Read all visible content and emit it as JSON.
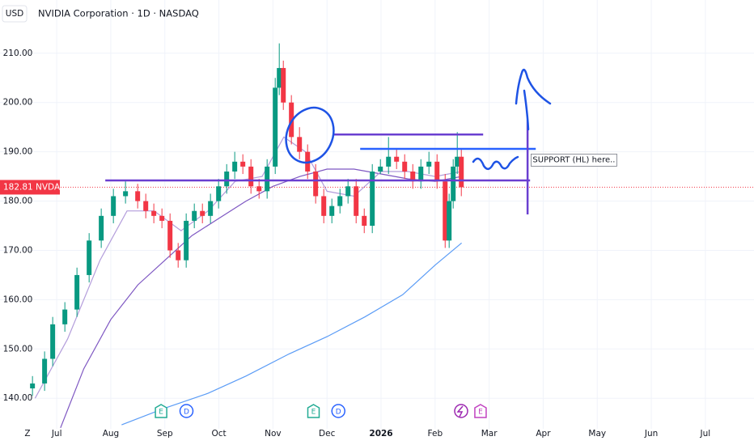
{
  "chart_data": {
    "type": "candlestick",
    "currency": "USD",
    "title": "NVIDIA Corporation · 1D · NASDAQ",
    "corner_label": "Z",
    "xlim": [
      5.95,
      19.9
    ],
    "ylim": [
      133.8,
      220.8
    ],
    "xticks": [
      {
        "value": 7,
        "label": "Jul"
      },
      {
        "value": 8,
        "label": "Aug"
      },
      {
        "value": 9,
        "label": "Sep"
      },
      {
        "value": 10,
        "label": "Oct"
      },
      {
        "value": 11,
        "label": "Nov"
      },
      {
        "value": 12,
        "label": "Dec"
      },
      {
        "value": 13,
        "label": "2026"
      },
      {
        "value": 14,
        "label": "Feb"
      },
      {
        "value": 15,
        "label": "Mar"
      },
      {
        "value": 16,
        "label": "Apr"
      },
      {
        "value": 17,
        "label": "May"
      },
      {
        "value": 18,
        "label": "Jun"
      },
      {
        "value": 19,
        "label": "Jul"
      }
    ],
    "yticks": [
      {
        "value": 140,
        "label": "140.00"
      },
      {
        "value": 150,
        "label": "150.00"
      },
      {
        "value": 160,
        "label": "160.00"
      },
      {
        "value": 170,
        "label": "170.00"
      },
      {
        "value": 180,
        "label": "180.00"
      },
      {
        "value": 190,
        "label": "190.00"
      },
      {
        "value": 200,
        "label": "200.00"
      },
      {
        "value": 210,
        "label": "210.00"
      }
    ],
    "grid": true,
    "up_color": "#089981",
    "down_color": "#f23645",
    "candles": {
      "x": [
        6.551,
        6.775,
        6.925,
        7.15,
        7.374,
        7.599,
        7.823,
        8.048,
        8.272,
        8.497,
        8.647,
        8.796,
        8.946,
        9.096,
        9.246,
        9.395,
        9.545,
        9.695,
        9.844,
        9.994,
        10.144,
        10.293,
        10.443,
        10.593,
        10.743,
        10.892,
        11.042,
        11.117,
        11.192,
        11.341,
        11.491,
        11.641,
        11.79,
        11.94,
        12.09,
        12.24,
        12.389,
        12.539,
        12.689,
        12.838,
        12.988,
        13.138,
        13.287,
        13.437,
        13.587,
        13.737,
        13.886,
        14.036,
        14.186,
        14.26,
        14.335,
        14.41,
        14.485
      ],
      "open": [
        142,
        143,
        148,
        155,
        158,
        165,
        172,
        177,
        181,
        182,
        180,
        178,
        177,
        176,
        170,
        168,
        176,
        178,
        177,
        180,
        183,
        186,
        188,
        187,
        183,
        182,
        187,
        203,
        207,
        200,
        193,
        190,
        186,
        181,
        177,
        179,
        181,
        183,
        177,
        175,
        186,
        187,
        189,
        188,
        186,
        184,
        187,
        188,
        184,
        172,
        180,
        187,
        189
      ],
      "high": [
        144.5,
        149.5,
        156.5,
        159.5,
        166.5,
        173.5,
        178.5,
        182.5,
        184,
        183.5,
        181.5,
        179.5,
        178.5,
        177.5,
        171.5,
        177.5,
        179.5,
        179.5,
        181.5,
        184.5,
        187.5,
        190,
        189.5,
        188.5,
        184.5,
        188.5,
        205,
        212,
        208.5,
        201.5,
        195,
        191.5,
        187.5,
        182.5,
        180.5,
        182.5,
        184.5,
        184.5,
        178.5,
        187.5,
        188.5,
        193,
        190.5,
        189.5,
        187.5,
        188.5,
        190,
        189.5,
        185.5,
        181.5,
        188.5,
        194,
        190.5
      ],
      "low": [
        140.5,
        141.5,
        146.5,
        153.5,
        156.5,
        163.5,
        170.5,
        175.5,
        179.5,
        178.5,
        176.5,
        175.5,
        174.5,
        168.5,
        166.5,
        166.5,
        174.5,
        175.5,
        175.5,
        178.5,
        181.5,
        184.5,
        185.5,
        181.5,
        180.5,
        180.5,
        185.5,
        201.5,
        198.5,
        191.5,
        188.5,
        184.5,
        179.5,
        175.5,
        175.5,
        177.5,
        179.5,
        175.5,
        173.5,
        173.5,
        185.5,
        185.5,
        186.5,
        184.5,
        182.5,
        182.5,
        185.5,
        182.5,
        170.5,
        170.5,
        178.5,
        185.5,
        181
      ],
      "close": [
        143,
        148,
        155,
        158,
        165,
        172,
        177,
        181,
        182,
        180,
        178,
        177,
        176,
        170,
        168,
        176,
        178,
        177,
        180,
        183,
        186,
        188,
        187,
        183,
        182,
        187,
        203,
        207,
        200,
        193,
        190,
        186,
        181,
        177,
        179,
        181,
        183,
        177,
        175,
        186,
        187,
        189,
        188,
        186,
        184,
        187,
        188,
        184,
        172,
        180,
        187,
        189,
        182.81
      ]
    },
    "series": [
      {
        "color": "#5b9cf6",
        "x": [
          8.2,
          9.0,
          9.8,
          10.5,
          11.3,
          12.0,
          12.7,
          13.4,
          14.0,
          14.49
        ],
        "values": [
          134.6,
          138,
          141,
          144.5,
          149,
          152.5,
          156.5,
          161,
          167,
          171.5
        ]
      },
      {
        "color": "#7e57c2",
        "x": [
          7.07,
          7.5,
          8.0,
          8.5,
          9.0,
          9.5,
          10.0,
          10.5,
          11.0,
          11.5,
          12.0,
          12.5,
          13.0,
          13.5,
          14.0,
          14.49
        ],
        "values": [
          134,
          146,
          156,
          163,
          168,
          173,
          176.5,
          180,
          183,
          185,
          186.5,
          186.5,
          185.5,
          184.5,
          184,
          185
        ]
      },
      {
        "color": "#b39ddb",
        "x": [
          6.6,
          7.2,
          7.8,
          8.3,
          8.8,
          9.3,
          9.8,
          10.3,
          10.8,
          11.2,
          11.6,
          12.0,
          12.5,
          13.0,
          13.5,
          14.0,
          14.49
        ],
        "values": [
          140,
          152,
          168,
          178,
          178,
          174,
          178,
          184,
          185,
          193,
          190,
          182,
          181,
          186,
          186,
          185,
          186
        ]
      }
    ],
    "last_price": {
      "value": 182.81,
      "label": "182.81",
      "symbol": "NVDA"
    },
    "events": [
      {
        "x": 8.93,
        "label": "E"
      },
      {
        "x": 9.4,
        "label": "D"
      },
      {
        "x": 11.75,
        "label": "E"
      },
      {
        "x": 12.21,
        "label": "D"
      },
      {
        "x": 14.84,
        "label": "E"
      }
    ],
    "drawings": {
      "lines": [
        {
          "color": "#6a3fd0",
          "x": [
            7.898,
            15.757
          ],
          "y": [
            184.2,
            184.2
          ]
        },
        {
          "color": "#6a3fd0",
          "x": [
            12.12,
            14.889
          ],
          "y": [
            193.5,
            193.5
          ]
        },
        {
          "color": "#2962ff",
          "x": [
            12.614,
            15.862
          ],
          "y": [
            190.6,
            190.6
          ]
        },
        {
          "color": "#6a3fd0",
          "x": [
            15.711,
            15.711
          ],
          "y": [
            196.5,
            177.3
          ]
        }
      ],
      "note": {
        "x": 15.76,
        "y": 188.4,
        "text": "SUPPORT (HL) here.."
      }
    }
  }
}
